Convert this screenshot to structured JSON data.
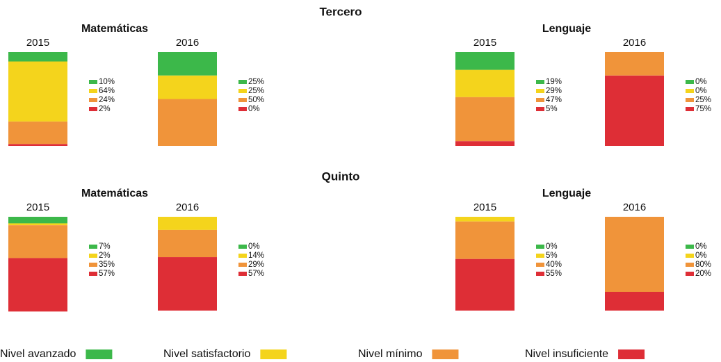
{
  "chart_data": {
    "type": "bar",
    "stacked": true,
    "ylim": [
      0,
      100
    ],
    "legend": [
      {
        "name": "Nivel avanzado",
        "color": "#3cb84a"
      },
      {
        "name": "Nivel satisfactorio",
        "color": "#f4d41c"
      },
      {
        "name": "Nivel mínimo",
        "color": "#f0943a"
      },
      {
        "name": "Nivel insuficiente",
        "color": "#de2e36"
      }
    ],
    "groups": [
      {
        "title": "Tercero",
        "panels": [
          {
            "title": "Matemáticas",
            "bars": [
              {
                "category": "2015",
                "values": [
                  10,
                  64,
                  24,
                  2
                ],
                "value_labels": [
                  "10%",
                  "64%",
                  "24%",
                  "2%"
                ]
              },
              {
                "category": "2016",
                "values": [
                  25,
                  25,
                  50,
                  0
                ],
                "value_labels": [
                  "25%",
                  "25%",
                  "50%",
                  "0%"
                ]
              }
            ]
          },
          {
            "title": "Lenguaje",
            "bars": [
              {
                "category": "2015",
                "values": [
                  19,
                  29,
                  47,
                  5
                ],
                "value_labels": [
                  "19%",
                  "29%",
                  "47%",
                  "5%"
                ]
              },
              {
                "category": "2016",
                "values": [
                  0,
                  0,
                  25,
                  75
                ],
                "value_labels": [
                  "0%",
                  "0%",
                  "25%",
                  "75%"
                ]
              }
            ]
          }
        ]
      },
      {
        "title": "Quinto",
        "panels": [
          {
            "title": "Matemáticas",
            "bars": [
              {
                "category": "2015",
                "values": [
                  7,
                  2,
                  35,
                  57
                ],
                "value_labels": [
                  "7%",
                  "2%",
                  "35%",
                  "57%"
                ]
              },
              {
                "category": "2016",
                "values": [
                  0,
                  14,
                  29,
                  57
                ],
                "value_labels": [
                  "0%",
                  "14%",
                  "29%",
                  "57%"
                ]
              }
            ]
          },
          {
            "title": "Lenguaje",
            "bars": [
              {
                "category": "2015",
                "values": [
                  0,
                  5,
                  40,
                  55
                ],
                "value_labels": [
                  "0%",
                  "5%",
                  "40%",
                  "55%"
                ]
              },
              {
                "category": "2016",
                "values": [
                  0,
                  0,
                  80,
                  20
                ],
                "value_labels": [
                  "0%",
                  "0%",
                  "80%",
                  "20%"
                ]
              }
            ]
          }
        ]
      }
    ]
  }
}
